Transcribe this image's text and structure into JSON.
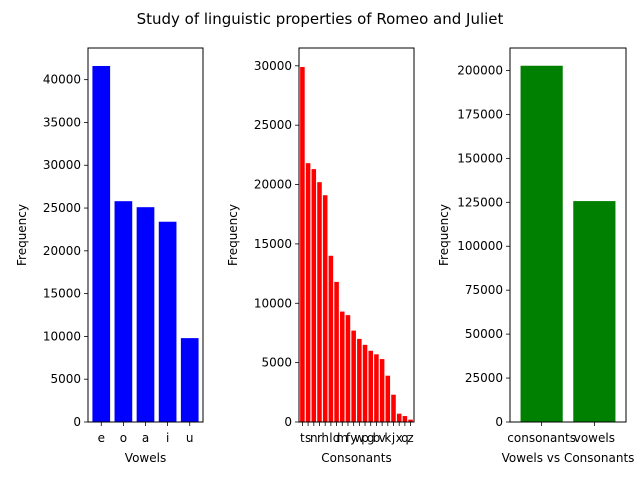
{
  "title": "Study of linguistic properties of Romeo and Juliet",
  "chart_data": [
    {
      "type": "bar",
      "color": "#0000ff",
      "title": "",
      "categories": [
        "e",
        "o",
        "a",
        "i",
        "u"
      ],
      "values": [
        41600,
        25800,
        25100,
        23400,
        9800
      ],
      "xlabel": "Vowels",
      "ylabel": "Frequency",
      "ylim": [
        0,
        43700
      ],
      "yticks": [
        0,
        5000,
        10000,
        15000,
        20000,
        25000,
        30000,
        35000,
        40000
      ],
      "grid": false
    },
    {
      "type": "bar",
      "color": "#ff0000",
      "title": "",
      "categories": [
        "t",
        "s",
        "n",
        "r",
        "h",
        "l",
        "d",
        "m",
        "f",
        "y",
        "w",
        "p",
        "g",
        "b",
        "v",
        "k",
        "j",
        "x",
        "q",
        "z"
      ],
      "values": [
        29900,
        21800,
        21300,
        20200,
        19100,
        14000,
        11800,
        9300,
        9000,
        7700,
        7000,
        6500,
        6000,
        5700,
        5300,
        3900,
        2300,
        700,
        500,
        200
      ],
      "xlabel": "Consonants",
      "ylabel": "Frequency",
      "ylim": [
        0,
        31500
      ],
      "yticks": [
        0,
        5000,
        10000,
        15000,
        20000,
        25000,
        30000
      ],
      "grid": false
    },
    {
      "type": "bar",
      "color": "#008000",
      "title": "",
      "categories": [
        "consonants",
        "vowels"
      ],
      "values": [
        202700,
        125700
      ],
      "xlabel": "Vowels vs Consonants",
      "ylabel": "Frequency",
      "ylim": [
        0,
        212800
      ],
      "yticks": [
        0,
        25000,
        50000,
        75000,
        100000,
        125000,
        150000,
        175000,
        200000
      ],
      "grid": false
    }
  ]
}
